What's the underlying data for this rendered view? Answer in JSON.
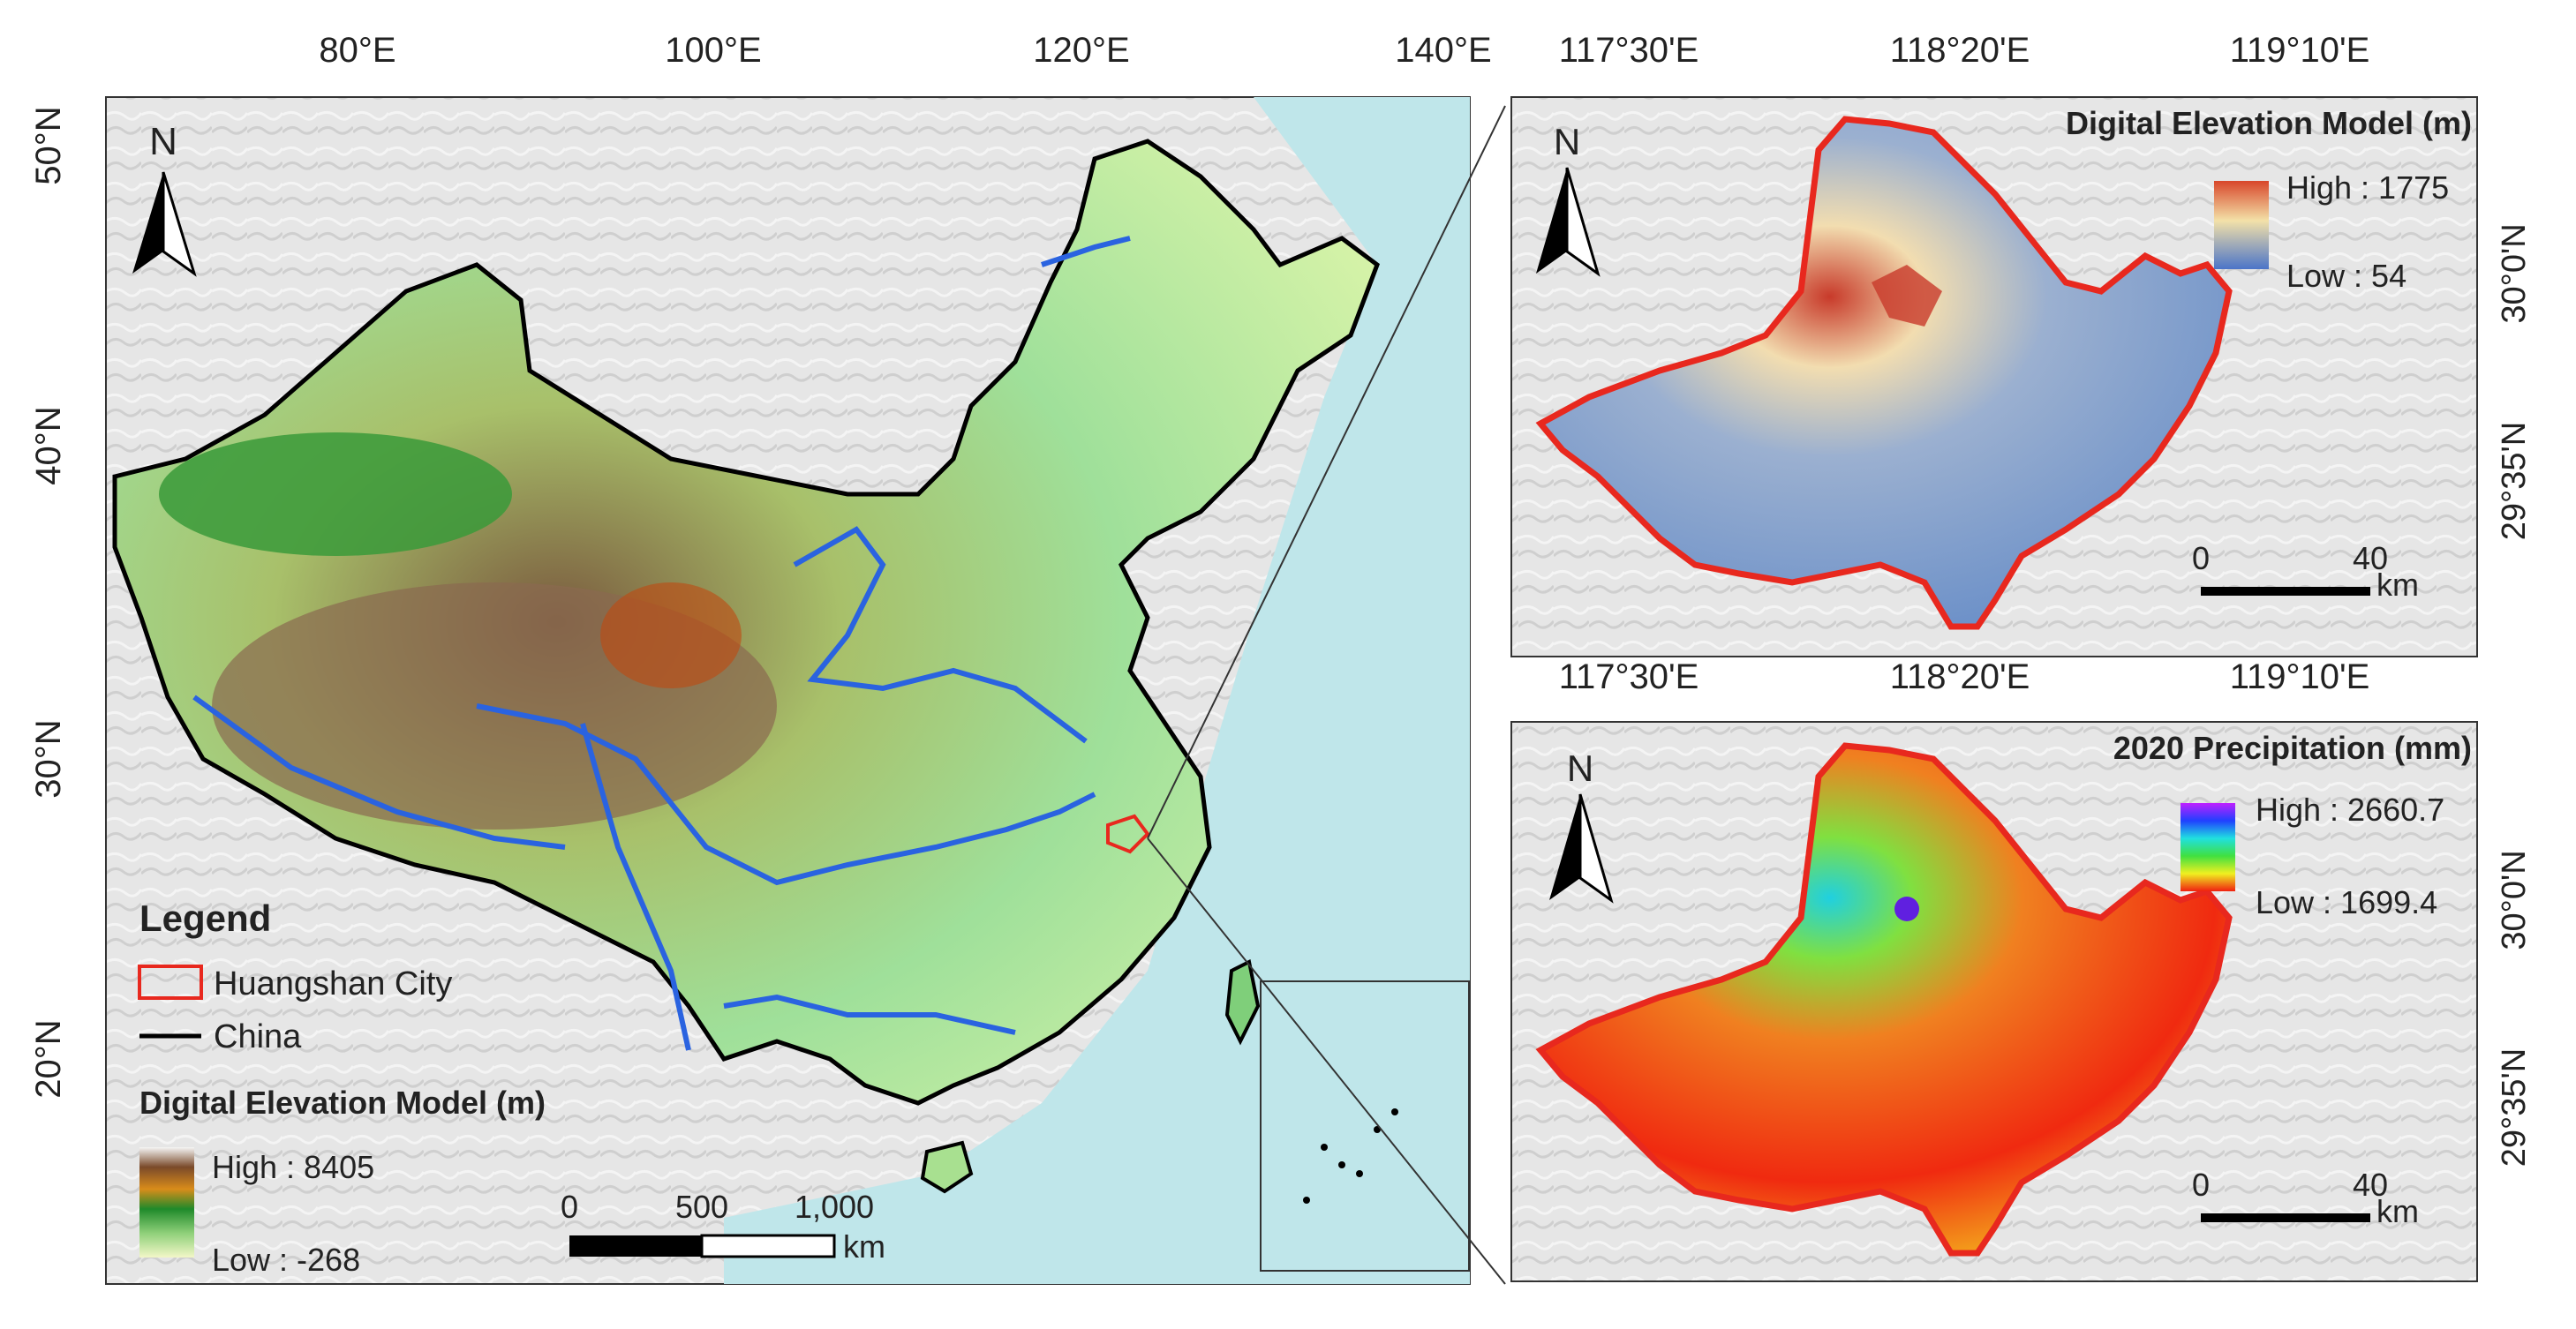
{
  "main_map": {
    "top_ticks": [
      "80°E",
      "100°E",
      "120°E",
      "140°E"
    ],
    "left_ticks": [
      "50°N",
      "40°N",
      "30°N",
      "20°N"
    ],
    "north": "N",
    "legend": {
      "title": "Legend",
      "items": [
        {
          "label": "Huangshan City",
          "color": "#e8281e",
          "symbol": "box"
        },
        {
          "label": "China",
          "color": "#000000",
          "symbol": "line"
        }
      ],
      "dem_title": "Digital Elevation Model (m)",
      "dem_high": "High : 8405",
      "dem_low": "Low : -268"
    },
    "scale": {
      "labels": [
        "0",
        "500",
        "1,000"
      ],
      "unit": "km"
    }
  },
  "dem_panel": {
    "title": "Digital Elevation Model (m)",
    "top_ticks": [
      "117°30'E",
      "118°20'E",
      "119°10'E"
    ],
    "right_ticks": [
      "30°0'N",
      "29°35'N"
    ],
    "north": "N",
    "high": "High : 1775",
    "low": "Low : 54",
    "scale": {
      "labels": [
        "0",
        "40"
      ],
      "unit": "km"
    }
  },
  "precip_panel": {
    "title": "2020 Precipitation (mm)",
    "top_ticks": [
      "117°30'E",
      "118°20'E",
      "119°10'E"
    ],
    "right_ticks": [
      "30°0'N",
      "29°35'N"
    ],
    "north": "N",
    "high": "High : 2660.7",
    "low": "Low : 1699.4",
    "scale": {
      "labels": [
        "0",
        "40"
      ],
      "unit": "km"
    }
  },
  "colors": {
    "sea": "#bfe6ea",
    "land_outside": "#e9e9e9",
    "river": "#2a63e0",
    "boundary": "#000000",
    "city": "#e8281e"
  }
}
